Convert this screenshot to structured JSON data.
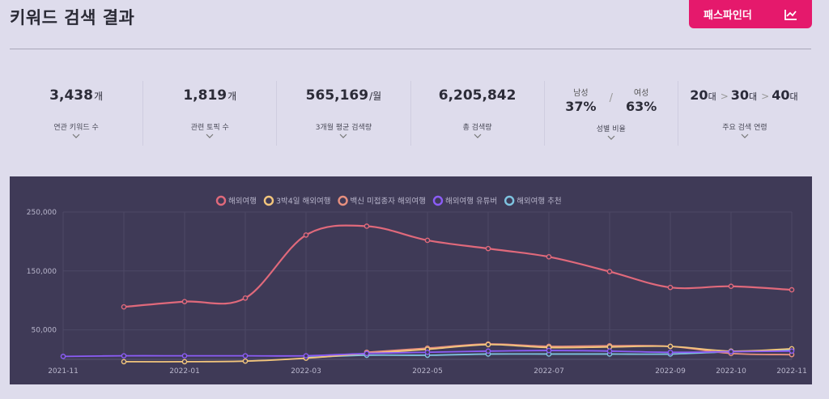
{
  "header": {
    "title": "키워드 검색 결과",
    "pathfinder_label": "패스파인더"
  },
  "stats": {
    "related_keywords": {
      "value": "3,438",
      "unit": "개",
      "caption": "연관 키워드 수"
    },
    "related_topics": {
      "value": "1,819",
      "unit": "개",
      "caption": "관련 토픽 수"
    },
    "avg_search": {
      "value": "565,169",
      "unit": "/월",
      "caption": "3개월 평균 검색량"
    },
    "total_search": {
      "value": "6,205,842",
      "unit": "",
      "caption": "총 검색량"
    },
    "gender": {
      "male_label": "남성",
      "male_pct": "37%",
      "slash": "/",
      "female_label": "여성",
      "female_pct": "63%",
      "caption": "성별 비율"
    },
    "ages": {
      "a1": "20",
      "a2": "30",
      "a3": "40",
      "unit": "대",
      "sep": ">",
      "caption": "주요 검색 연령"
    }
  },
  "chart_data": {
    "type": "line",
    "x": [
      "2021-11",
      "2021-12",
      "2022-01",
      "2022-02",
      "2022-03",
      "2022-04",
      "2022-05",
      "2022-06",
      "2022-07",
      "2022-08",
      "2022-09",
      "2022-10",
      "2022-11"
    ],
    "x_tick_labels": [
      "2021-11",
      "2022-01",
      "2022-03",
      "2022-05",
      "2022-07",
      "2022-09",
      "2022-10",
      "2022-11"
    ],
    "y_tick_labels": [
      "250,000",
      "150,000",
      "50,000"
    ],
    "ylim": [
      0,
      250000
    ],
    "legend_position": "top",
    "series": [
      {
        "name": "해외여행",
        "color": "#e0697b",
        "values": [
          null,
          89000,
          98000,
          104000,
          211000,
          226000,
          202000,
          188000,
          174000,
          149000,
          122000,
          124000,
          118000
        ]
      },
      {
        "name": "3박4일 해외여행",
        "color": "#f2c57c",
        "values": [
          null,
          -4000,
          -4000,
          -3000,
          2000,
          10000,
          17000,
          25000,
          20000,
          21000,
          22000,
          14000,
          18000
        ]
      },
      {
        "name": "백신 미접종자 해외여행",
        "color": "#e8907f",
        "values": [
          null,
          null,
          null,
          null,
          null,
          12000,
          19000,
          26000,
          22000,
          23000,
          22000,
          10000,
          8000
        ]
      },
      {
        "name": "해외여행 유튜버",
        "color": "#8b5cf6",
        "values": [
          5000,
          6000,
          6000,
          6000,
          6000,
          10000,
          12000,
          14000,
          15000,
          14000,
          12000,
          13000,
          14000
        ]
      },
      {
        "name": "해외여행 추천",
        "color": "#7ec3e0",
        "values": [
          null,
          null,
          null,
          null,
          3000,
          7000,
          7000,
          9000,
          9000,
          9000,
          9000,
          13000,
          16000
        ]
      }
    ]
  }
}
